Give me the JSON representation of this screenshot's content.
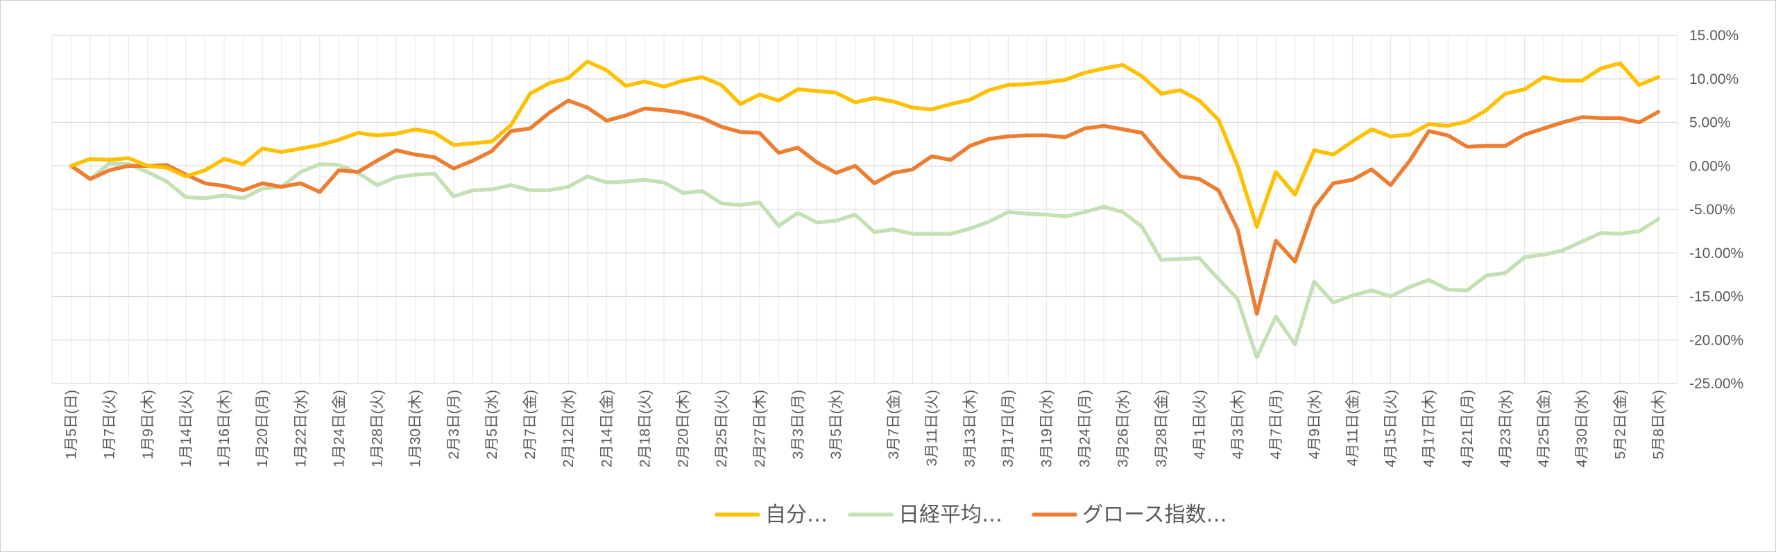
{
  "chart_data": {
    "type": "line",
    "title": "",
    "xlabel": "",
    "ylabel": "",
    "ylim": [
      -0.25,
      0.15
    ],
    "y_ticks": [
      0.15,
      0.1,
      0.05,
      0.0,
      -0.05,
      -0.1,
      -0.15,
      -0.2,
      -0.25
    ],
    "y_tick_labels": [
      "15.00%",
      "10.00%",
      "5.00%",
      "0.00%",
      "-5.00%",
      "-10.00%",
      "-15.00%",
      "-20.00%",
      "-25.00%"
    ],
    "grid": true,
    "legend_position": "bottom",
    "x_tick_labels": [
      "1月5日(日)",
      "1月7日(火)",
      "1月9日(木)",
      "1月14日(火)",
      "1月16日(木)",
      "1月20日(月)",
      "1月22日(水)",
      "1月24日(金)",
      "1月28日(火)",
      "1月30日(木)",
      "2月3日(月)",
      "2月5日(水)",
      "2月7日(金)",
      "2月12日(水)",
      "2月14日(金)",
      "2月18日(火)",
      "2月20日(木)",
      "2月25日(火)",
      "2月27日(木)",
      "3月3日(月)",
      "3月5日(水)",
      "3月7日(金)",
      "3月11日(火)",
      "3月13日(木)",
      "3月17日(月)",
      "3月19日(水)",
      "3月24日(月)",
      "3月26日(水)",
      "3月28日(金)",
      "4月1日(火)",
      "4月3日(木)",
      "4月7日(月)",
      "4月9日(水)",
      "4月11日(金)",
      "4月15日(火)",
      "4月17日(木)",
      "4月21日(月)",
      "4月23日(水)",
      "4月25日(金)",
      "4月30日(水)",
      "5月2日(金)",
      "5月8日(木)"
    ],
    "series": [
      {
        "name": "自分…",
        "color": "#FFC000",
        "values": [
          0.0,
          0.008,
          0.007,
          0.009,
          0.0,
          -0.002,
          -0.012,
          -0.005,
          0.008,
          0.002,
          0.02,
          0.016,
          0.02,
          0.024,
          0.03,
          0.038,
          0.035,
          0.037,
          0.042,
          0.038,
          0.024,
          0.026,
          0.028,
          0.047,
          0.083,
          0.095,
          0.101,
          0.12,
          0.11,
          0.092,
          0.097,
          0.091,
          0.098,
          0.102,
          0.093,
          0.071,
          0.082,
          0.075,
          0.088,
          0.086,
          0.084,
          0.073,
          0.078,
          0.074,
          0.067,
          0.065,
          0.071,
          0.076,
          0.087,
          0.093,
          0.094,
          0.096,
          0.099,
          0.107,
          0.112,
          0.116,
          0.103,
          0.083,
          0.087,
          0.075,
          0.053,
          0.0,
          -0.07,
          -0.007,
          -0.033,
          0.018,
          0.013,
          0.028,
          0.042,
          0.034,
          0.036,
          0.048,
          0.046,
          0.051,
          0.064,
          0.083,
          0.088,
          0.102,
          0.098,
          0.098,
          0.112,
          0.118,
          0.093,
          0.102
        ]
      },
      {
        "name": "日経平均…",
        "color": "#C5E0B4",
        "values": [
          0.0,
          -0.015,
          0.003,
          0.002,
          -0.007,
          -0.018,
          -0.036,
          -0.037,
          -0.034,
          -0.037,
          -0.026,
          -0.024,
          -0.007,
          0.002,
          0.001,
          -0.008,
          -0.022,
          -0.013,
          -0.01,
          -0.009,
          -0.035,
          -0.028,
          -0.027,
          -0.022,
          -0.028,
          -0.028,
          -0.024,
          -0.012,
          -0.019,
          -0.018,
          -0.016,
          -0.019,
          -0.031,
          -0.029,
          -0.043,
          -0.045,
          -0.042,
          -0.069,
          -0.054,
          -0.065,
          -0.063,
          -0.056,
          -0.076,
          -0.073,
          -0.078,
          -0.078,
          -0.078,
          -0.072,
          -0.064,
          -0.053,
          -0.055,
          -0.056,
          -0.058,
          -0.053,
          -0.047,
          -0.053,
          -0.07,
          -0.108,
          -0.107,
          -0.106,
          -0.13,
          -0.153,
          -0.22,
          -0.173,
          -0.205,
          -0.133,
          -0.157,
          -0.149,
          -0.143,
          -0.15,
          -0.139,
          -0.131,
          -0.142,
          -0.143,
          -0.126,
          -0.123,
          -0.105,
          -0.102,
          -0.097,
          -0.087,
          -0.077,
          -0.078,
          -0.075,
          -0.061
        ]
      },
      {
        "name": "グロース指数…",
        "color": "#ED7D31",
        "values": [
          0.0,
          -0.015,
          -0.005,
          0.0,
          0.0,
          0.001,
          -0.01,
          -0.02,
          -0.023,
          -0.028,
          -0.02,
          -0.024,
          -0.02,
          -0.03,
          -0.005,
          -0.007,
          0.006,
          0.018,
          0.013,
          0.01,
          -0.003,
          0.006,
          0.017,
          0.04,
          0.043,
          0.061,
          0.075,
          0.067,
          0.052,
          0.058,
          0.066,
          0.064,
          0.061,
          0.055,
          0.045,
          0.039,
          0.038,
          0.015,
          0.021,
          0.004,
          -0.008,
          0.0,
          -0.02,
          -0.008,
          -0.004,
          0.011,
          0.007,
          0.023,
          0.031,
          0.034,
          0.035,
          0.035,
          0.033,
          0.043,
          0.046,
          0.042,
          0.038,
          0.011,
          -0.012,
          -0.015,
          -0.028,
          -0.073,
          -0.17,
          -0.086,
          -0.11,
          -0.048,
          -0.02,
          -0.016,
          -0.004,
          -0.022,
          0.006,
          0.04,
          0.035,
          0.022,
          0.023,
          0.023,
          0.036,
          0.043,
          0.05,
          0.056,
          0.055,
          0.055,
          0.05,
          0.062
        ]
      }
    ]
  }
}
